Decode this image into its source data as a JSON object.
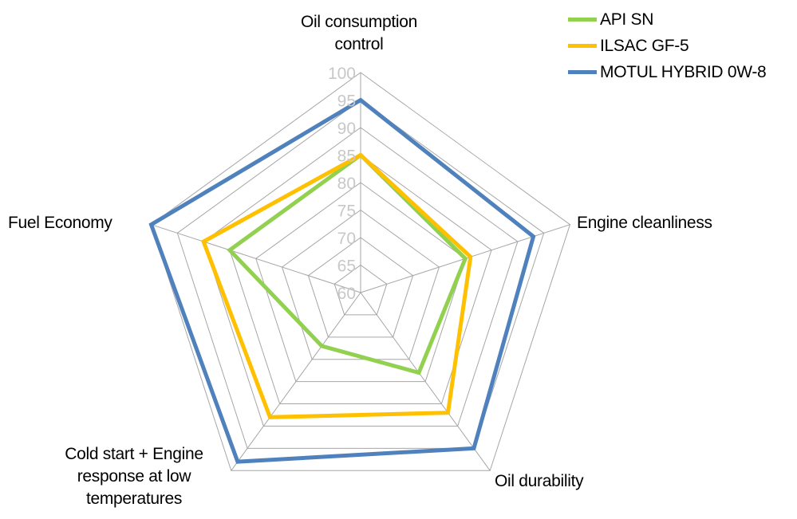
{
  "chart_data": {
    "type": "radar",
    "title": "",
    "axes": [
      [
        "Oil consumption",
        "control"
      ],
      [
        "Engine cleanliness"
      ],
      [
        "Oil durability"
      ],
      [
        "Cold start + Engine",
        "response at low",
        "temperatures"
      ],
      [
        "Fuel Economy"
      ]
    ],
    "rlim": [
      60,
      100
    ],
    "ticks": [
      60,
      65,
      70,
      75,
      80,
      85,
      90,
      95,
      100
    ],
    "grid": true,
    "legend": "top-right",
    "series": [
      {
        "name": "API SN",
        "color": "#92D050",
        "values": [
          85,
          80,
          78,
          72,
          85
        ]
      },
      {
        "name": "ILSAC GF-5",
        "color": "#FFC000",
        "values": [
          85,
          81,
          87,
          88,
          90
        ]
      },
      {
        "name": "MOTUL HYBRID 0W-8",
        "color": "#4F81BD",
        "values": [
          95,
          93,
          95,
          98,
          100
        ]
      }
    ]
  }
}
